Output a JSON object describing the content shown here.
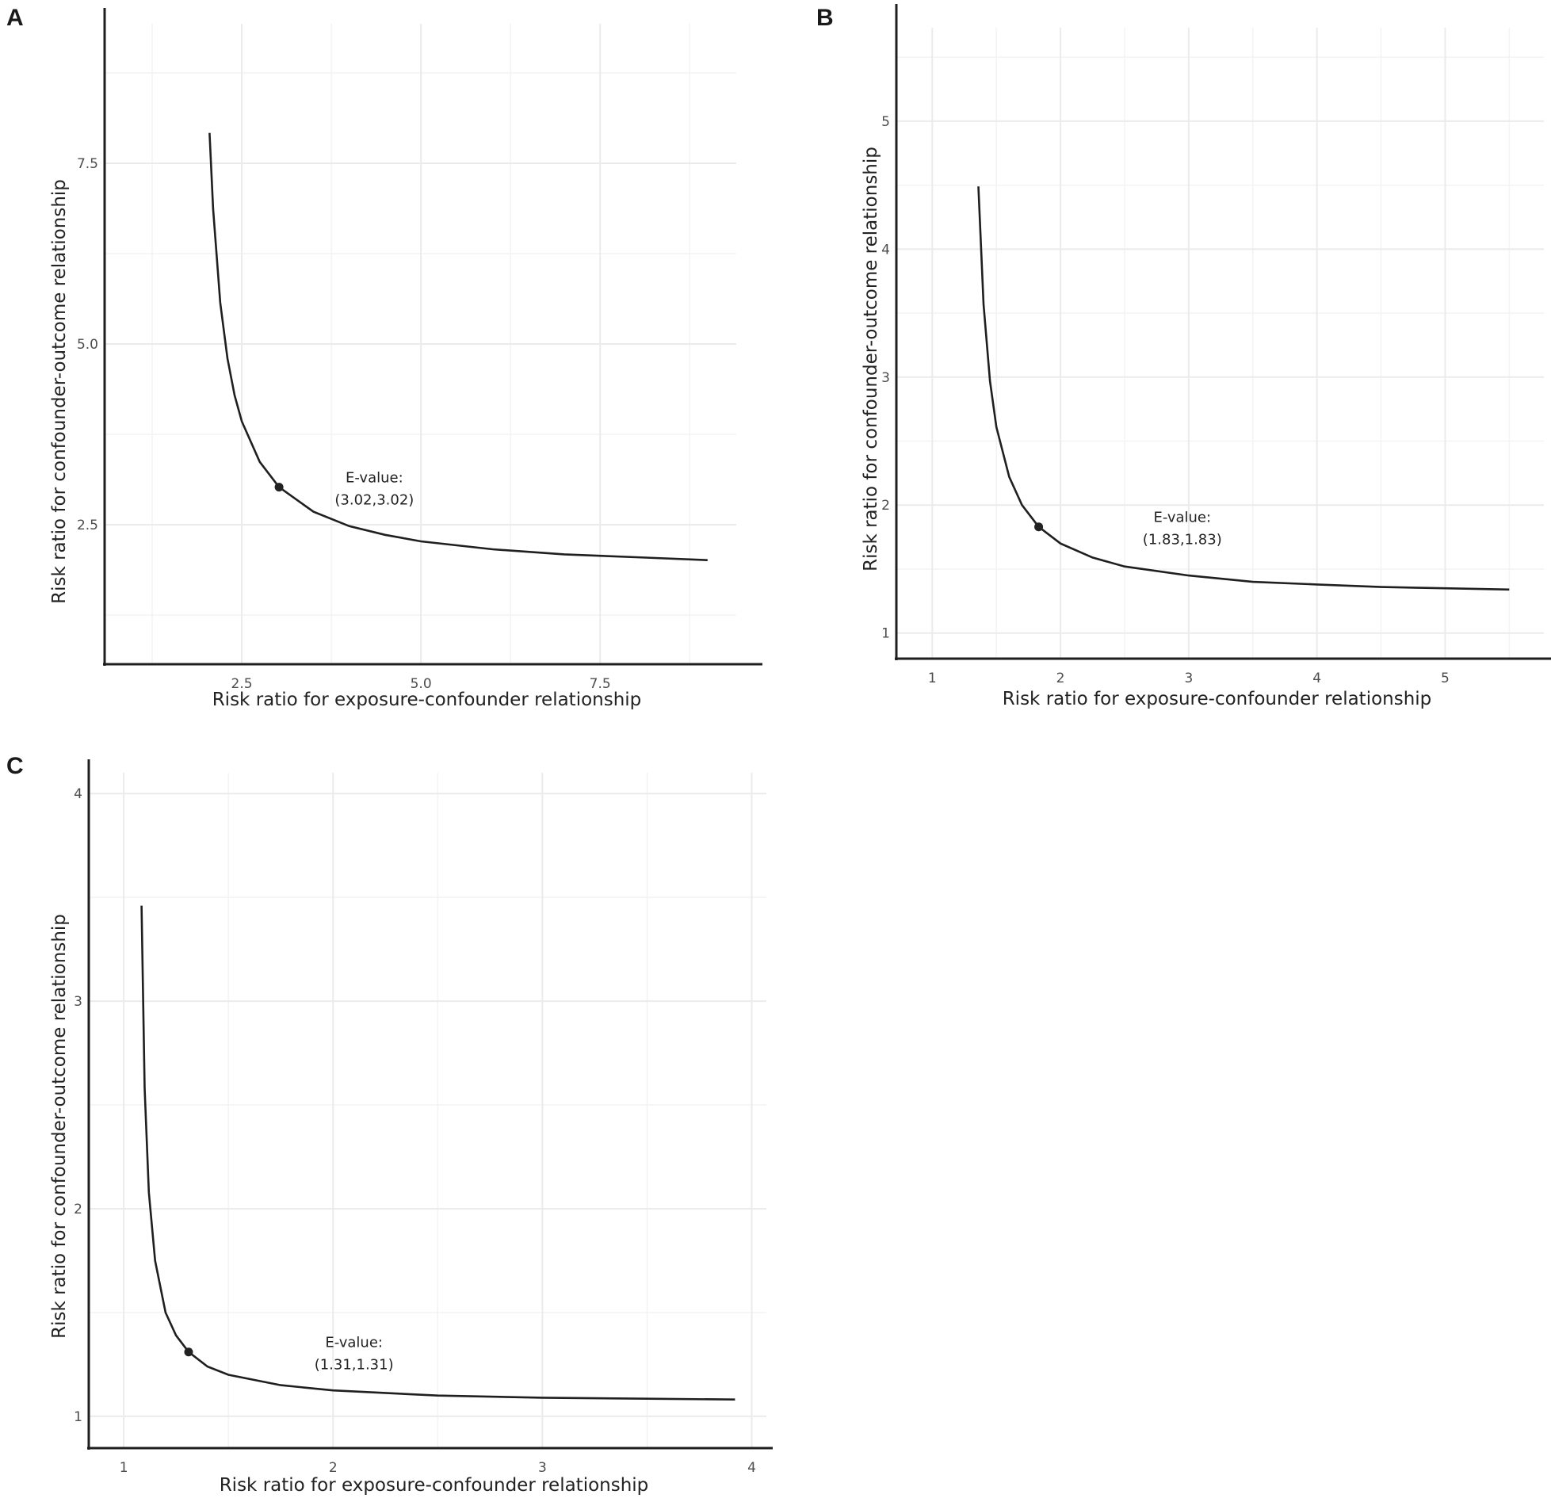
{
  "figure": {
    "panels_count": 3
  },
  "chart_data": [
    {
      "panel": "A",
      "type": "line",
      "title": "",
      "xlabel": "Risk ratio for exposure-confounder relationship",
      "ylabel": "Risk ratio for confounder-outcome relationship",
      "xlim": [
        0.586,
        9.4
      ],
      "ylim": [
        0.57,
        9.43
      ],
      "x_ticks": [
        2.5,
        5.0,
        7.5
      ],
      "x_tick_labels": [
        "2.5",
        "5.0",
        "7.5"
      ],
      "x_minor": [
        1.25,
        3.75,
        6.25,
        8.75
      ],
      "y_ticks": [
        2.5,
        5.0,
        7.5
      ],
      "y_tick_labels": [
        "2.5",
        "5.0",
        "7.5"
      ],
      "y_minor": [
        1.25,
        3.75,
        6.25,
        8.75
      ],
      "grid": true,
      "series": [
        {
          "name": "E-value bias curve",
          "x": [
            2.05,
            2.1,
            2.2,
            2.3,
            2.4,
            2.5,
            2.75,
            3.02,
            3.5,
            4.0,
            4.5,
            5.0,
            6.0,
            7.0,
            8.0,
            9.0
          ],
          "y": [
            7.92,
            6.87,
            5.57,
            4.8,
            4.29,
            3.93,
            3.37,
            3.02,
            2.68,
            2.48,
            2.36,
            2.27,
            2.16,
            2.09,
            2.05,
            2.01
          ]
        }
      ],
      "evalue_point": {
        "x": 3.02,
        "y": 3.02
      },
      "annotation": {
        "line1": "E-value:",
        "line2": "(3.02,3.02)",
        "x": 4.35,
        "y": 3.02
      }
    },
    {
      "panel": "B",
      "type": "line",
      "title": "",
      "xlabel": "Risk ratio for exposure-confounder relationship",
      "ylabel": "Risk ratio for confounder-outcome relationship",
      "xlim": [
        0.72,
        5.77
      ],
      "ylim": [
        0.8,
        5.73
      ],
      "x_ticks": [
        1,
        2,
        3,
        4,
        5
      ],
      "x_tick_labels": [
        "1",
        "2",
        "3",
        "4",
        "5"
      ],
      "x_minor": [
        1.5,
        2.5,
        3.5,
        4.5,
        5.5
      ],
      "y_ticks": [
        1,
        2,
        3,
        4,
        5
      ],
      "y_tick_labels": [
        "1",
        "2",
        "3",
        "4",
        "5"
      ],
      "y_minor": [
        1.5,
        2.5,
        3.5,
        4.5,
        5.5
      ],
      "grid": true,
      "series": [
        {
          "name": "E-value bias curve",
          "x": [
            1.36,
            1.4,
            1.45,
            1.5,
            1.6,
            1.7,
            1.83,
            2.0,
            2.25,
            2.5,
            3.0,
            3.5,
            4.0,
            4.5,
            5.0,
            5.5
          ],
          "y": [
            4.49,
            3.57,
            2.97,
            2.61,
            2.22,
            2.0,
            1.83,
            1.7,
            1.59,
            1.52,
            1.45,
            1.4,
            1.38,
            1.36,
            1.35,
            1.34
          ]
        }
      ],
      "evalue_point": {
        "x": 1.83,
        "y": 1.83
      },
      "annotation": {
        "line1": "E-value:",
        "line2": "(1.83,1.83)",
        "x": 2.95,
        "y": 1.83
      }
    },
    {
      "panel": "C",
      "type": "line",
      "title": "",
      "xlabel": "Risk ratio for exposure-confounder relationship",
      "ylabel": "Risk ratio for confounder-outcome relationship",
      "xlim": [
        0.833,
        4.07
      ],
      "ylim": [
        0.847,
        4.1
      ],
      "x_ticks": [
        1,
        2,
        3,
        4
      ],
      "x_tick_labels": [
        "1",
        "2",
        "3",
        "4"
      ],
      "x_minor": [
        1.5,
        2.5,
        3.5
      ],
      "y_ticks": [
        1,
        2,
        3,
        4
      ],
      "y_tick_labels": [
        "1",
        "2",
        "3",
        "4"
      ],
      "y_minor": [
        1.5,
        2.5,
        3.5
      ],
      "grid": true,
      "series": [
        {
          "name": "E-value bias curve",
          "x": [
            1.085,
            1.1,
            1.12,
            1.15,
            1.2,
            1.25,
            1.31,
            1.4,
            1.5,
            1.75,
            2.0,
            2.5,
            3.0,
            3.5,
            3.92
          ],
          "y": [
            3.46,
            2.58,
            2.08,
            1.75,
            1.5,
            1.39,
            1.31,
            1.24,
            1.2,
            1.15,
            1.125,
            1.1,
            1.09,
            1.085,
            1.081
          ]
        }
      ],
      "evalue_point": {
        "x": 1.31,
        "y": 1.31
      },
      "annotation": {
        "line1": "E-value:",
        "line2": "(1.31,1.31)",
        "x": 2.1,
        "y": 1.31
      }
    }
  ]
}
